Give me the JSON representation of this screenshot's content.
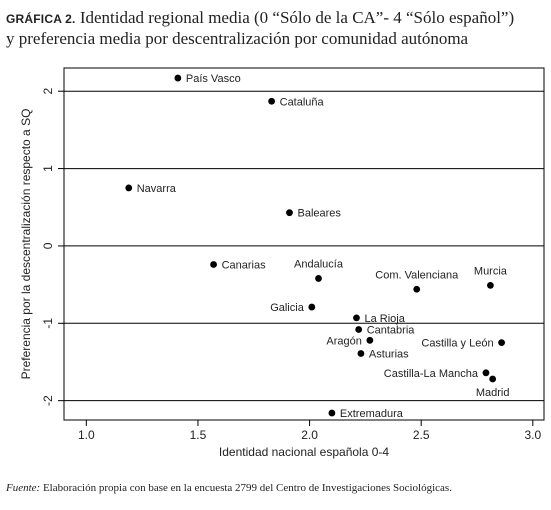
{
  "figure": {
    "tag": "GRÁFICA 2.",
    "title_line1": "Identidad regional media (0 “Sólo de la CA”- 4 “Sólo español”)",
    "title_line2": "y preferencia media por descentralización por comunidad autónoma",
    "source_label": "Fuente:",
    "source_text": "Elaboración propia con base en la encuesta 2799 del Centro de Investigaciones Sociológicas."
  },
  "chart_data": {
    "type": "scatter",
    "xlabel": "Identidad nacional española 0-4",
    "ylabel": "Preferencia por la descentralización respecto a SQ",
    "xlim": [
      0.9,
      3.05
    ],
    "ylim": [
      -2.25,
      2.3
    ],
    "xticks": [
      1.0,
      1.5,
      2.0,
      2.5,
      3.0
    ],
    "xtick_labels": [
      "1.0",
      "1.5",
      "2.0",
      "2.5",
      "3.0"
    ],
    "yticks": [
      -2,
      -1,
      0,
      1,
      2
    ],
    "ytick_labels": [
      "-2",
      "-1",
      "0",
      "1",
      "2"
    ],
    "hlines": [
      2,
      1,
      0,
      -1,
      -2
    ],
    "point_color": "#000000",
    "points": [
      {
        "label": "País Vasco",
        "x": 1.41,
        "y": 2.17,
        "pos": "right"
      },
      {
        "label": "Cataluña",
        "x": 1.83,
        "y": 1.87,
        "pos": "right"
      },
      {
        "label": "Navarra",
        "x": 1.19,
        "y": 0.75,
        "pos": "right"
      },
      {
        "label": "Baleares",
        "x": 1.91,
        "y": 0.43,
        "pos": "right"
      },
      {
        "label": "Canarias",
        "x": 1.57,
        "y": -0.24,
        "pos": "right"
      },
      {
        "label": "Andalucía",
        "x": 2.04,
        "y": -0.42,
        "pos": "above"
      },
      {
        "label": "Com. Valenciana",
        "x": 2.48,
        "y": -0.56,
        "pos": "above"
      },
      {
        "label": "Murcia",
        "x": 2.81,
        "y": -0.51,
        "pos": "above"
      },
      {
        "label": "Galicia",
        "x": 2.01,
        "y": -0.79,
        "pos": "left"
      },
      {
        "label": "La Rioja",
        "x": 2.21,
        "y": -0.93,
        "pos": "right"
      },
      {
        "label": "Cantabria",
        "x": 2.22,
        "y": -1.08,
        "pos": "right"
      },
      {
        "label": "Aragón",
        "x": 2.27,
        "y": -1.22,
        "pos": "left"
      },
      {
        "label": "Castilla y León",
        "x": 2.86,
        "y": -1.25,
        "pos": "left"
      },
      {
        "label": "Asturias",
        "x": 2.23,
        "y": -1.39,
        "pos": "right"
      },
      {
        "label": "Castilla-La Mancha",
        "x": 2.79,
        "y": -1.64,
        "pos": "left"
      },
      {
        "label": "Madrid",
        "x": 2.82,
        "y": -1.72,
        "pos": "below"
      },
      {
        "label": "Extremadura",
        "x": 2.1,
        "y": -2.16,
        "pos": "right"
      }
    ]
  }
}
